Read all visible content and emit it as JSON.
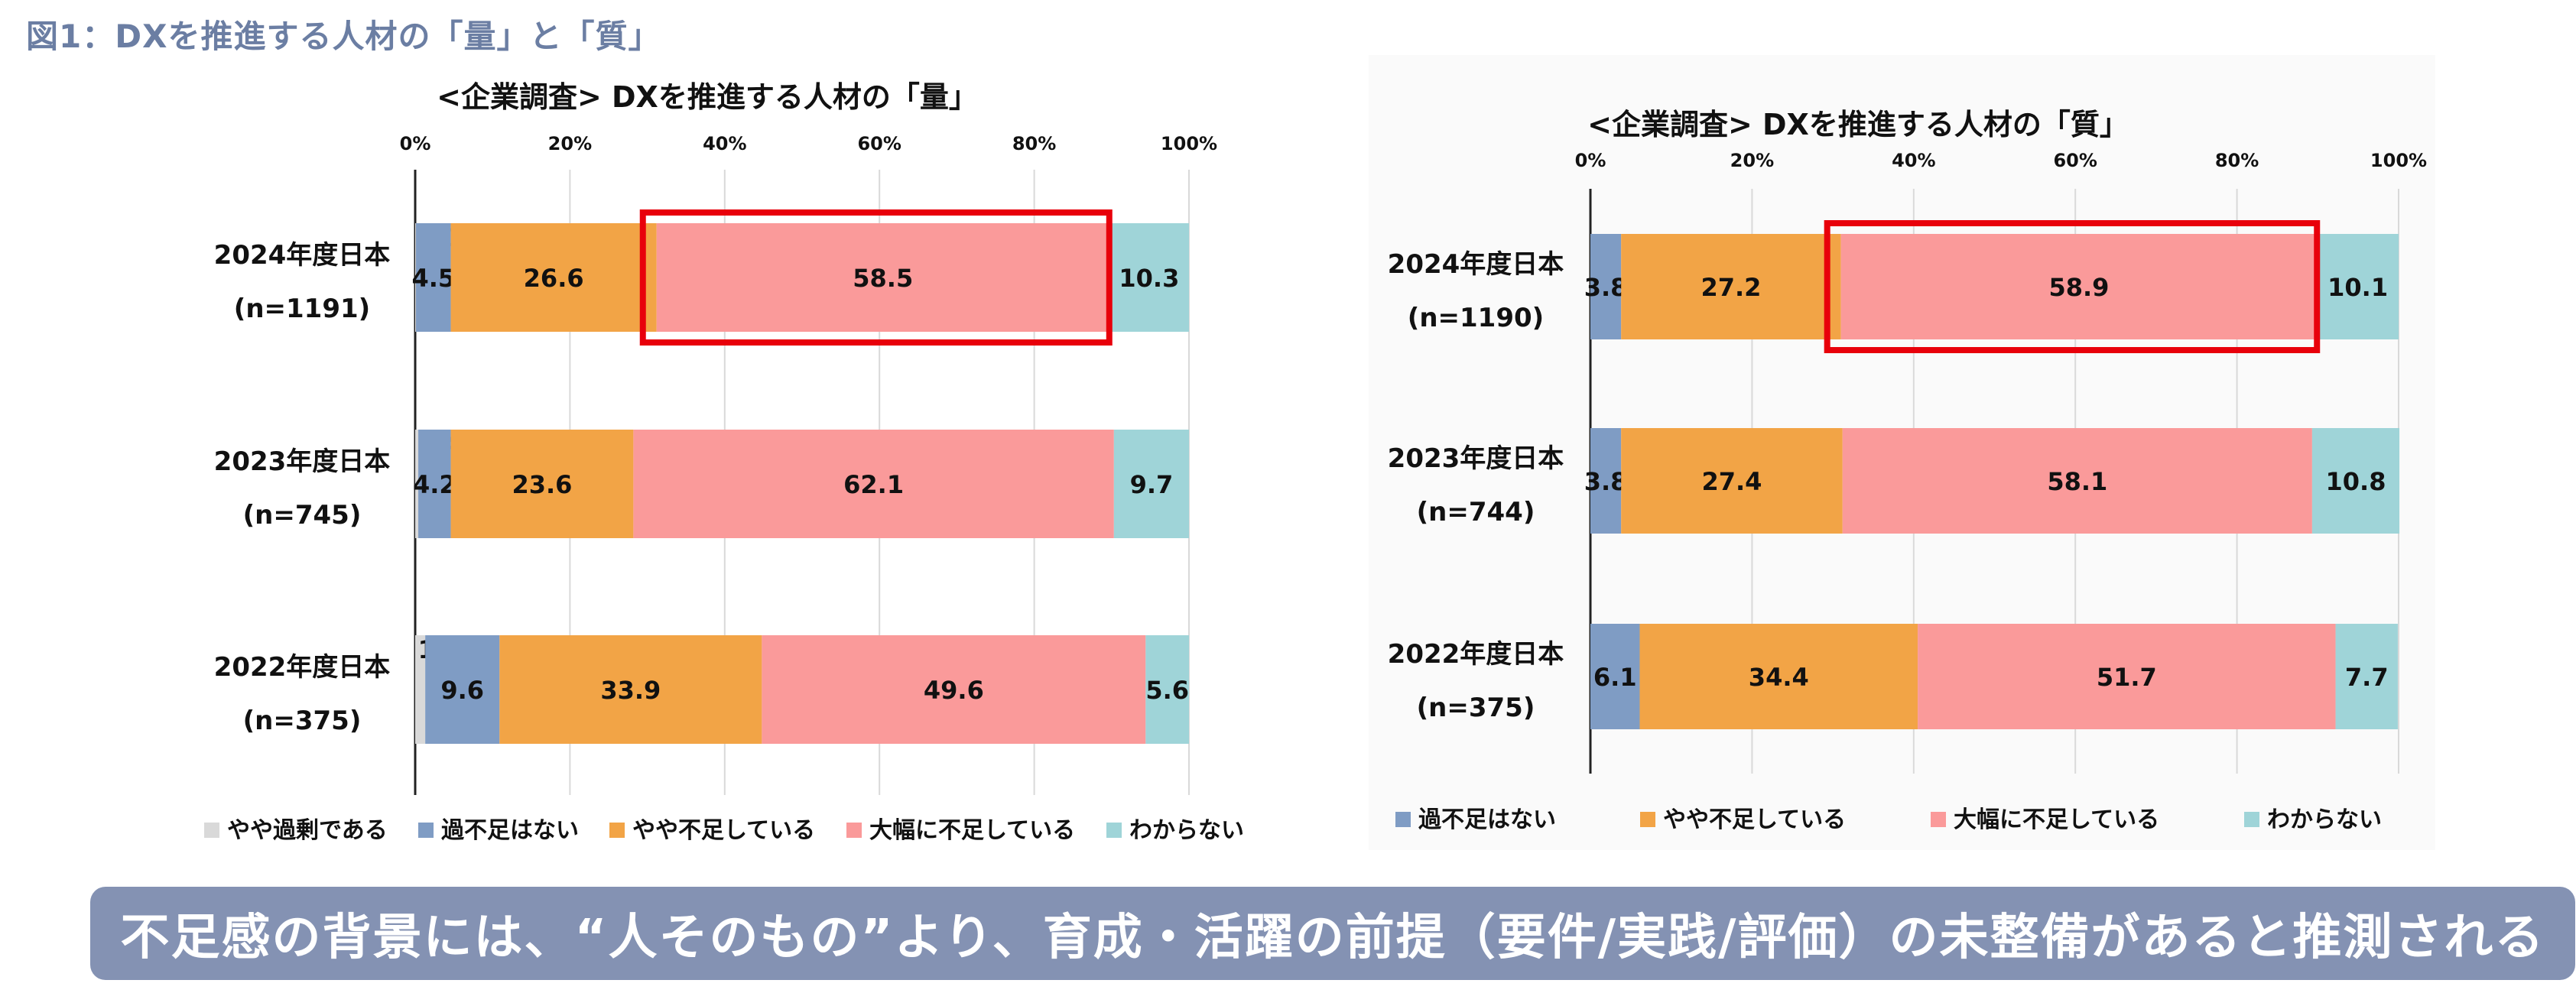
{
  "figure_title": "図1：DXを推進する人材の「量」と「質」",
  "banner_text": "不足感の背景には、“人そのもの”より、育成・活躍の前提（要件/実践/評価）の未整備があると推測される",
  "colors": {
    "やや過剰である": "#d9d9d9",
    "過不足はない": "#7f9cc4",
    "やや不足している": "#f2a446",
    "大幅に不足している": "#fa9a9a",
    "わからない": "#9fd4d8",
    "highlight": "#e8000b",
    "banner": "#8492b3"
  },
  "chart_data": [
    {
      "type": "bar",
      "orientation": "horizontal",
      "stacked": true,
      "title": "<企業調査> DXを推進する人材の「量」",
      "categories": [
        "2024年度日本 (n=1191)",
        "2023年度日本 (n=745)",
        "2022年度日本 (n=375)"
      ],
      "category_lines": [
        [
          "2024年度日本",
          "(n=1191)"
        ],
        [
          "2023年度日本",
          "(n=745)"
        ],
        [
          "2022年度日本",
          "(n=375)"
        ]
      ],
      "xlim": [
        0,
        100
      ],
      "xticks": [
        "0%",
        "20%",
        "40%",
        "60%",
        "80%",
        "100%"
      ],
      "grid": true,
      "legend_position": "bottom",
      "series": [
        {
          "name": "やや過剰である",
          "values": [
            0.1,
            0.4,
            1.3
          ]
        },
        {
          "name": "過不足はない",
          "values": [
            4.5,
            4.2,
            9.6
          ]
        },
        {
          "name": "やや不足している",
          "values": [
            26.6,
            23.6,
            33.9
          ]
        },
        {
          "name": "大幅に不足している",
          "values": [
            58.5,
            62.1,
            49.6
          ]
        },
        {
          "name": "わからない",
          "values": [
            10.3,
            9.7,
            5.6
          ]
        }
      ],
      "highlight": {
        "category_index": 0,
        "series_index": 3
      }
    },
    {
      "type": "bar",
      "orientation": "horizontal",
      "stacked": true,
      "title": "<企業調査> DXを推進する人材の「質」",
      "categories": [
        "2024年度日本 (n=1190)",
        "2023年度日本 (n=744)",
        "2022年度日本 (n=375)"
      ],
      "category_lines": [
        [
          "2024年度日本",
          "(n=1190)"
        ],
        [
          "2023年度日本",
          "(n=744)"
        ],
        [
          "2022年度日本",
          "(n=375)"
        ]
      ],
      "xlim": [
        0,
        100
      ],
      "xticks": [
        "0%",
        "20%",
        "40%",
        "60%",
        "80%",
        "100%"
      ],
      "grid": true,
      "legend_position": "bottom",
      "series": [
        {
          "name": "過不足はない",
          "values": [
            3.8,
            3.8,
            6.1
          ]
        },
        {
          "name": "やや不足している",
          "values": [
            27.2,
            27.4,
            34.4
          ]
        },
        {
          "name": "大幅に不足している",
          "values": [
            58.9,
            58.1,
            51.7
          ]
        },
        {
          "name": "わからない",
          "values": [
            10.1,
            10.8,
            7.7
          ]
        }
      ],
      "highlight": {
        "category_index": 0,
        "series_index": 2
      }
    }
  ]
}
